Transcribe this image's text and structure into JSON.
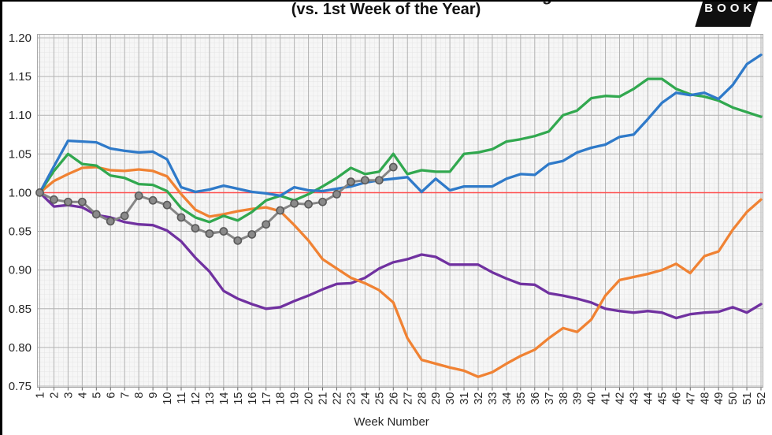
{
  "figure": {
    "clipped_title_fragment": "g",
    "subtitle": "(vs. 1st Week of the Year)",
    "logo_text": "BOOK",
    "colors": {
      "blue": "#2F7AC9",
      "green": "#31A84F",
      "orange": "#F08233",
      "purple": "#7031A0",
      "gray": "#858585",
      "baseline_red": "#FF4F4F",
      "plot_bg": "#f6f6f6",
      "grid_minor": "#e4e4e4",
      "grid_major": "#b3b3b3",
      "frame": "#a9a9a9",
      "tick_text": "#262626",
      "logo_bg": "#101010"
    }
  },
  "chart_data": {
    "type": "line",
    "title_visible": false,
    "subtitle": "(vs. 1st Week of the Year)",
    "xlabel": "Week Number",
    "ylabel": "",
    "ylim": [
      0.75,
      1.2
    ],
    "y_tick_step": 0.05,
    "y_tick_labels": [
      "1.20",
      "1.15",
      "1.10",
      "1.05",
      "1.00",
      "0.95",
      "0.90",
      "0.85",
      "0.80",
      "0.75"
    ],
    "x": [
      1,
      2,
      3,
      4,
      5,
      6,
      7,
      8,
      9,
      10,
      11,
      12,
      13,
      14,
      15,
      16,
      17,
      18,
      19,
      20,
      21,
      22,
      23,
      24,
      25,
      26,
      27,
      28,
      29,
      30,
      31,
      32,
      33,
      34,
      35,
      36,
      37,
      38,
      39,
      40,
      41,
      42,
      43,
      44,
      45,
      46,
      47,
      48,
      49,
      50,
      51,
      52
    ],
    "grid": "major and fine minor mesh, on",
    "legend_position": "none visible (cropped)",
    "baseline": {
      "value": 1.0,
      "color": "#FF4F4F"
    },
    "series": [
      {
        "name": "purple-line",
        "color": "#7031A0",
        "marker": false,
        "values": [
          1.0,
          0.982,
          0.984,
          0.981,
          0.971,
          0.968,
          0.962,
          0.959,
          0.958,
          0.951,
          0.937,
          0.916,
          0.898,
          0.873,
          0.863,
          0.856,
          0.85,
          0.852,
          0.86,
          0.867,
          0.875,
          0.882,
          0.883,
          0.89,
          0.902,
          0.91,
          0.914,
          0.92,
          0.917,
          0.907,
          0.907,
          0.907,
          0.897,
          0.889,
          0.882,
          0.881,
          0.87,
          0.867,
          0.863,
          0.858,
          0.85,
          0.847,
          0.845,
          0.847,
          0.845,
          0.838,
          0.843,
          0.845,
          0.846,
          0.852,
          0.845,
          0.856
        ]
      },
      {
        "name": "orange-line",
        "color": "#F08233",
        "marker": false,
        "values": [
          1.0,
          1.015,
          1.024,
          1.032,
          1.033,
          1.029,
          1.028,
          1.03,
          1.028,
          1.021,
          0.998,
          0.978,
          0.969,
          0.972,
          0.976,
          0.979,
          0.981,
          0.976,
          0.958,
          0.938,
          0.914,
          0.902,
          0.89,
          0.883,
          0.874,
          0.858,
          0.812,
          0.784,
          0.779,
          0.774,
          0.77,
          0.762,
          0.768,
          0.779,
          0.789,
          0.797,
          0.812,
          0.825,
          0.82,
          0.836,
          0.867,
          0.887,
          0.891,
          0.895,
          0.9,
          0.908,
          0.896,
          0.918,
          0.924,
          0.952,
          0.975,
          0.991
        ]
      },
      {
        "name": "green-line",
        "color": "#31A84F",
        "marker": false,
        "values": [
          1.0,
          1.028,
          1.05,
          1.037,
          1.035,
          1.022,
          1.019,
          1.011,
          1.01,
          1.002,
          0.98,
          0.968,
          0.962,
          0.97,
          0.964,
          0.975,
          0.99,
          0.996,
          0.99,
          0.998,
          1.008,
          1.019,
          1.032,
          1.024,
          1.027,
          1.05,
          1.024,
          1.029,
          1.027,
          1.027,
          1.05,
          1.052,
          1.056,
          1.066,
          1.069,
          1.073,
          1.079,
          1.1,
          1.106,
          1.122,
          1.125,
          1.124,
          1.134,
          1.147,
          1.147,
          1.134,
          1.127,
          1.124,
          1.119,
          1.11,
          1.104,
          1.098
        ]
      },
      {
        "name": "blue-line",
        "color": "#2F7AC9",
        "marker": false,
        "values": [
          1.0,
          1.034,
          1.067,
          1.066,
          1.065,
          1.057,
          1.054,
          1.052,
          1.053,
          1.043,
          1.007,
          1.001,
          1.004,
          1.009,
          1.005,
          1.001,
          0.999,
          0.996,
          1.007,
          1.003,
          1.002,
          1.005,
          1.008,
          1.013,
          1.016,
          1.018,
          1.02,
          1.001,
          1.018,
          1.003,
          1.008,
          1.008,
          1.008,
          1.018,
          1.024,
          1.023,
          1.037,
          1.041,
          1.052,
          1.058,
          1.062,
          1.072,
          1.075,
          1.095,
          1.116,
          1.129,
          1.126,
          1.129,
          1.121,
          1.139,
          1.166,
          1.178
        ]
      },
      {
        "name": "gray-marker-line",
        "color": "#858585",
        "marker": true,
        "values": [
          1.0,
          0.991,
          0.988,
          0.988,
          0.972,
          0.963,
          0.97,
          0.996,
          0.99,
          0.984,
          0.968,
          0.954,
          0.947,
          0.95,
          0.938,
          0.946,
          0.959,
          0.977,
          0.986,
          0.985,
          0.988,
          0.998,
          1.014,
          1.016,
          1.016,
          1.033
        ]
      }
    ]
  }
}
